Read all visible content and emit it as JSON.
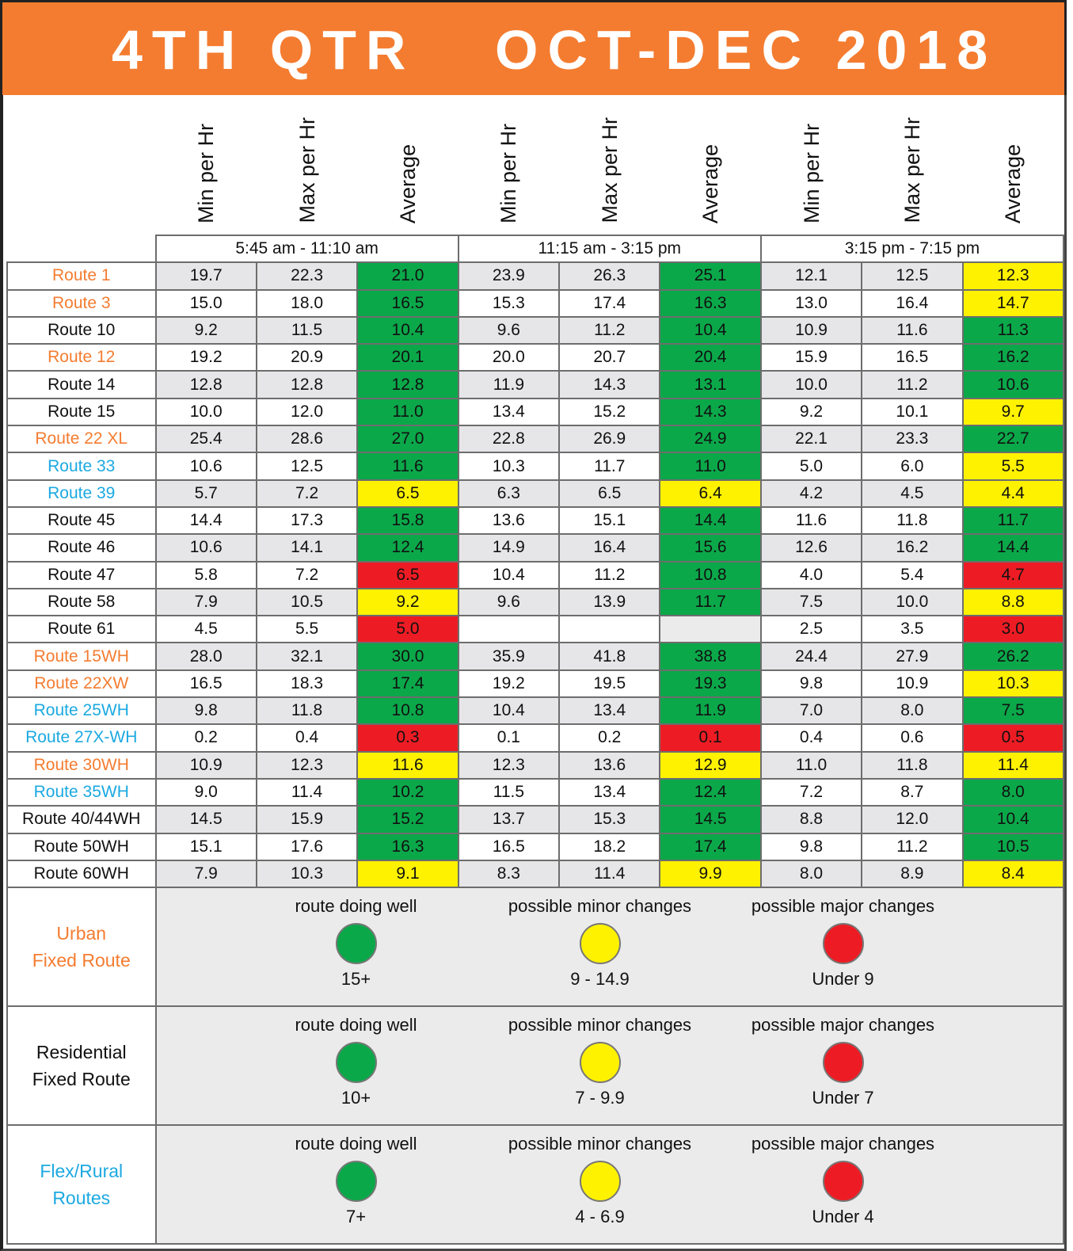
{
  "title": {
    "quarter": "4TH QTR",
    "period": "OCT-DEC 2018"
  },
  "colors": {
    "header": "#F47C30",
    "good": "#0BA84A",
    "minor": "#FFF200",
    "major": "#ED1C24",
    "urban": "#F47C30",
    "flex": "#1BA9E1",
    "residential": "#111111"
  },
  "columns": [
    "Min per Hr",
    "Max per Hr",
    "Average",
    "Min per Hr",
    "Max per Hr",
    "Average",
    "Min per Hr",
    "Max per Hr",
    "Average"
  ],
  "time_periods": [
    "5:45 am - 11:10 am",
    "11:15 am - 3:15 pm",
    "3:15 pm - 7:15 pm"
  ],
  "chart_data": {
    "type": "table",
    "title": "4TH QTR OCT-DEC 2018",
    "rows": [
      {
        "route": "Route 1",
        "type": "urban",
        "values": [
          "19.7",
          "22.3",
          "21.0",
          "23.9",
          "26.3",
          "25.1",
          "12.1",
          "12.5",
          "12.3"
        ],
        "status": [
          "good",
          "good",
          "minor"
        ]
      },
      {
        "route": "Route 3",
        "type": "urban",
        "values": [
          "15.0",
          "18.0",
          "16.5",
          "15.3",
          "17.4",
          "16.3",
          "13.0",
          "16.4",
          "14.7"
        ],
        "status": [
          "good",
          "good",
          "minor"
        ]
      },
      {
        "route": "Route 10",
        "type": "residential",
        "values": [
          "9.2",
          "11.5",
          "10.4",
          "9.6",
          "11.2",
          "10.4",
          "10.9",
          "11.6",
          "11.3"
        ],
        "status": [
          "good",
          "good",
          "good"
        ]
      },
      {
        "route": "Route 12",
        "type": "urban",
        "values": [
          "19.2",
          "20.9",
          "20.1",
          "20.0",
          "20.7",
          "20.4",
          "15.9",
          "16.5",
          "16.2"
        ],
        "status": [
          "good",
          "good",
          "good"
        ]
      },
      {
        "route": "Route 14",
        "type": "residential",
        "values": [
          "12.8",
          "12.8",
          "12.8",
          "11.9",
          "14.3",
          "13.1",
          "10.0",
          "11.2",
          "10.6"
        ],
        "status": [
          "good",
          "good",
          "good"
        ]
      },
      {
        "route": "Route 15",
        "type": "residential",
        "values": [
          "10.0",
          "12.0",
          "11.0",
          "13.4",
          "15.2",
          "14.3",
          "9.2",
          "10.1",
          "9.7"
        ],
        "status": [
          "good",
          "good",
          "minor"
        ]
      },
      {
        "route": "Route 22 XL",
        "type": "urban",
        "values": [
          "25.4",
          "28.6",
          "27.0",
          "22.8",
          "26.9",
          "24.9",
          "22.1",
          "23.3",
          "22.7"
        ],
        "status": [
          "good",
          "good",
          "good"
        ]
      },
      {
        "route": "Route 33",
        "type": "flex",
        "values": [
          "10.6",
          "12.5",
          "11.6",
          "10.3",
          "11.7",
          "11.0",
          "5.0",
          "6.0",
          "5.5"
        ],
        "status": [
          "good",
          "good",
          "minor"
        ]
      },
      {
        "route": "Route 39",
        "type": "flex",
        "values": [
          "5.7",
          "7.2",
          "6.5",
          "6.3",
          "6.5",
          "6.4",
          "4.2",
          "4.5",
          "4.4"
        ],
        "status": [
          "minor",
          "minor",
          "minor"
        ]
      },
      {
        "route": "Route 45",
        "type": "residential",
        "values": [
          "14.4",
          "17.3",
          "15.8",
          "13.6",
          "15.1",
          "14.4",
          "11.6",
          "11.8",
          "11.7"
        ],
        "status": [
          "good",
          "good",
          "good"
        ]
      },
      {
        "route": "Route 46",
        "type": "residential",
        "values": [
          "10.6",
          "14.1",
          "12.4",
          "14.9",
          "16.4",
          "15.6",
          "12.6",
          "16.2",
          "14.4"
        ],
        "status": [
          "good",
          "good",
          "good"
        ]
      },
      {
        "route": "Route 47",
        "type": "residential",
        "values": [
          "5.8",
          "7.2",
          "6.5",
          "10.4",
          "11.2",
          "10.8",
          "4.0",
          "5.4",
          "4.7"
        ],
        "status": [
          "major",
          "good",
          "major"
        ]
      },
      {
        "route": "Route 58",
        "type": "residential",
        "values": [
          "7.9",
          "10.5",
          "9.2",
          "9.6",
          "13.9",
          "11.7",
          "7.5",
          "10.0",
          "8.8"
        ],
        "status": [
          "minor",
          "good",
          "minor"
        ]
      },
      {
        "route": "Route 61",
        "type": "residential",
        "values": [
          "4.5",
          "5.5",
          "5.0",
          "",
          "",
          "",
          "2.5",
          "3.5",
          "3.0"
        ],
        "status": [
          "major",
          "none",
          "major"
        ]
      },
      {
        "route": "Route 15WH",
        "type": "urban",
        "values": [
          "28.0",
          "32.1",
          "30.0",
          "35.9",
          "41.8",
          "38.8",
          "24.4",
          "27.9",
          "26.2"
        ],
        "status": [
          "good",
          "good",
          "good"
        ]
      },
      {
        "route": "Route 22XW",
        "type": "urban",
        "values": [
          "16.5",
          "18.3",
          "17.4",
          "19.2",
          "19.5",
          "19.3",
          "9.8",
          "10.9",
          "10.3"
        ],
        "status": [
          "good",
          "good",
          "minor"
        ]
      },
      {
        "route": "Route 25WH",
        "type": "flex",
        "values": [
          "9.8",
          "11.8",
          "10.8",
          "10.4",
          "13.4",
          "11.9",
          "7.0",
          "8.0",
          "7.5"
        ],
        "status": [
          "good",
          "good",
          "good"
        ]
      },
      {
        "route": "Route 27X-WH",
        "type": "flex",
        "values": [
          "0.2",
          "0.4",
          "0.3",
          "0.1",
          "0.2",
          "0.1",
          "0.4",
          "0.6",
          "0.5"
        ],
        "status": [
          "major",
          "major",
          "major"
        ]
      },
      {
        "route": "Route 30WH",
        "type": "urban",
        "values": [
          "10.9",
          "12.3",
          "11.6",
          "12.3",
          "13.6",
          "12.9",
          "11.0",
          "11.8",
          "11.4"
        ],
        "status": [
          "minor",
          "minor",
          "minor"
        ]
      },
      {
        "route": "Route 35WH",
        "type": "flex",
        "values": [
          "9.0",
          "11.4",
          "10.2",
          "11.5",
          "13.4",
          "12.4",
          "7.2",
          "8.7",
          "8.0"
        ],
        "status": [
          "good",
          "good",
          "good"
        ]
      },
      {
        "route": "Route 40/44WH",
        "type": "residential",
        "values": [
          "14.5",
          "15.9",
          "15.2",
          "13.7",
          "15.3",
          "14.5",
          "8.8",
          "12.0",
          "10.4"
        ],
        "status": [
          "good",
          "good",
          "good"
        ]
      },
      {
        "route": "Route 50WH",
        "type": "residential",
        "values": [
          "15.1",
          "17.6",
          "16.3",
          "16.5",
          "18.2",
          "17.4",
          "9.8",
          "11.2",
          "10.5"
        ],
        "status": [
          "good",
          "good",
          "good"
        ]
      },
      {
        "route": "Route 60WH",
        "type": "residential",
        "values": [
          "7.9",
          "10.3",
          "9.1",
          "8.3",
          "11.4",
          "9.9",
          "8.0",
          "8.9",
          "8.4"
        ],
        "status": [
          "minor",
          "minor",
          "minor"
        ]
      }
    ]
  },
  "legend": [
    {
      "name_lines": [
        "Urban",
        "Fixed Route"
      ],
      "type": "urban",
      "items": [
        {
          "label": "route doing well",
          "status": "good",
          "range": "15+"
        },
        {
          "label": "possible minor changes",
          "status": "minor",
          "range": "9 - 14.9"
        },
        {
          "label": "possible major changes",
          "status": "major",
          "range": "Under 9"
        }
      ]
    },
    {
      "name_lines": [
        "Residential",
        "Fixed Route"
      ],
      "type": "residential",
      "items": [
        {
          "label": "route doing well",
          "status": "good",
          "range": "10+"
        },
        {
          "label": "possible minor changes",
          "status": "minor",
          "range": "7 - 9.9"
        },
        {
          "label": "possible major changes",
          "status": "major",
          "range": "Under 7"
        }
      ]
    },
    {
      "name_lines": [
        "Flex/Rural",
        "Routes"
      ],
      "type": "flex",
      "items": [
        {
          "label": "route doing well",
          "status": "good",
          "range": "7+"
        },
        {
          "label": "possible minor changes",
          "status": "minor",
          "range": "4 - 6.9"
        },
        {
          "label": "possible major changes",
          "status": "major",
          "range": "Under 4"
        }
      ]
    }
  ]
}
